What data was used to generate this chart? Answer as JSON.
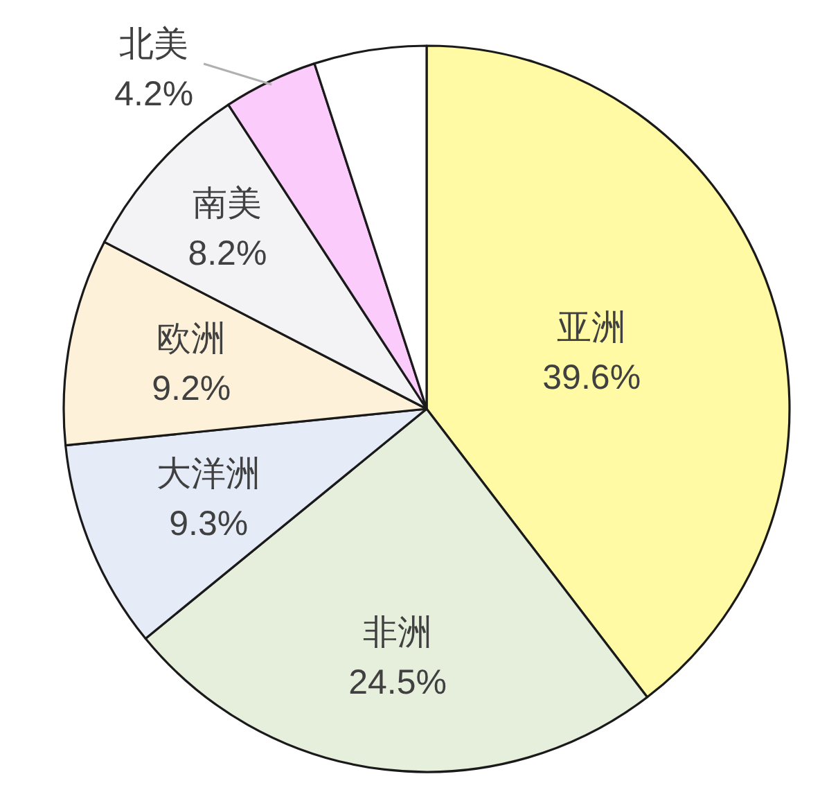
{
  "chart_data": {
    "type": "pie",
    "categories": [
      "亚洲",
      "非洲",
      "大洋洲",
      "欧洲",
      "南美",
      "北美",
      null
    ],
    "values": [
      39.6,
      24.5,
      9.3,
      9.2,
      8.2,
      4.2,
      5.0
    ],
    "colors": [
      "#fffaa3",
      "#e6eedc",
      "#e5ecf7",
      "#fdf1da",
      "#f3f2f4",
      "#fbccfb",
      "#ffffff"
    ],
    "value_labels": [
      "39.6%",
      "24.5%",
      "9.3%",
      "9.2%",
      "8.2%",
      "4.2%",
      null
    ]
  }
}
